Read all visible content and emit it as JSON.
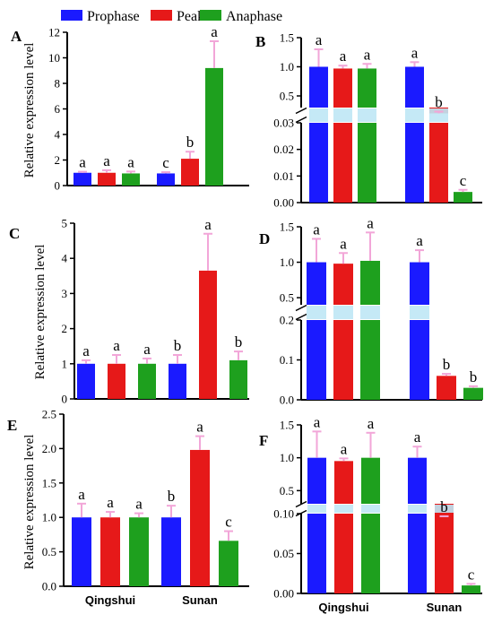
{
  "legend": [
    {
      "label": "Prophase",
      "color": "#1a1aff"
    },
    {
      "label": "Peak",
      "color": "#e61919"
    },
    {
      "label": "Anaphase",
      "color": "#1ea01e"
    }
  ],
  "y_axis_label": "Relative expression level",
  "colors": {
    "prophase": "#1a1aff",
    "peak": "#e61919",
    "anaphase": "#1ea01e",
    "error": "#f2a6d8",
    "break": "#bfe7f5"
  },
  "chart_data": [
    {
      "panel": "A",
      "type": "bar",
      "categories": [
        "Qingshui",
        "Sunan"
      ],
      "ylabel": "Relative expression level",
      "ylim": [
        0,
        12
      ],
      "yticks": [
        0,
        2,
        4,
        6,
        8,
        10,
        12
      ],
      "series": [
        {
          "name": "Prophase",
          "values": [
            1.0,
            0.95
          ],
          "errors": [
            0.08,
            0.1
          ],
          "letters": [
            "a",
            "c"
          ]
        },
        {
          "name": "Peak",
          "values": [
            1.0,
            2.1
          ],
          "errors": [
            0.2,
            0.55
          ],
          "letters": [
            "a",
            "b"
          ]
        },
        {
          "name": "Anaphase",
          "values": [
            0.95,
            9.2
          ],
          "errors": [
            0.15,
            2.1
          ],
          "letters": [
            "a",
            "a"
          ]
        }
      ]
    },
    {
      "panel": "B",
      "type": "bar",
      "categories": [
        "Qingshui",
        "Sunan"
      ],
      "broken_axis": true,
      "upper": {
        "ylim": [
          0.3,
          1.5
        ],
        "yticks": [
          0.5,
          1.0,
          1.5
        ],
        "yticklabels": [
          "0.5",
          "1.0",
          "1.5"
        ]
      },
      "lower": {
        "ylim": [
          0,
          0.03
        ],
        "yticks": [
          0,
          0.01,
          0.02,
          0.03
        ],
        "yticklabels": [
          "0.00",
          "0.01",
          "0.02",
          "0.03"
        ]
      },
      "series": [
        {
          "name": "Prophase",
          "values": [
            1.0,
            1.0
          ],
          "errors": [
            0.3,
            0.08
          ],
          "letters": [
            "a",
            "a"
          ]
        },
        {
          "name": "Peak",
          "values": [
            0.97,
            0.2
          ],
          "errors": [
            0.05,
            0.03
          ],
          "letters": [
            "a",
            "b"
          ]
        },
        {
          "name": "Anaphase",
          "values": [
            0.97,
            0.004
          ],
          "errors": [
            0.08,
            0.0008
          ],
          "letters": [
            "a",
            "c"
          ]
        }
      ]
    },
    {
      "panel": "C",
      "type": "bar",
      "categories": [
        "Qingshui",
        "Sunan"
      ],
      "ylabel": "Relative expression level",
      "ylim": [
        0,
        5
      ],
      "yticks": [
        0,
        1,
        2,
        3,
        4,
        5
      ],
      "series": [
        {
          "name": "Prophase",
          "values": [
            1.0,
            1.0
          ],
          "errors": [
            0.1,
            0.25
          ],
          "letters": [
            "a",
            "b"
          ]
        },
        {
          "name": "Peak",
          "values": [
            1.0,
            3.65
          ],
          "errors": [
            0.25,
            1.05
          ],
          "letters": [
            "a",
            "a"
          ]
        },
        {
          "name": "Anaphase",
          "values": [
            1.0,
            1.1
          ],
          "errors": [
            0.15,
            0.25
          ],
          "letters": [
            "a",
            "b"
          ]
        }
      ]
    },
    {
      "panel": "D",
      "type": "bar",
      "categories": [
        "Qingshui",
        "Sunan"
      ],
      "broken_axis": true,
      "upper": {
        "ylim": [
          0.4,
          1.5
        ],
        "yticks": [
          0.5,
          1.0,
          1.5
        ],
        "yticklabels": [
          "0.5",
          "1.0",
          "1.5"
        ]
      },
      "lower": {
        "ylim": [
          0,
          0.2
        ],
        "yticks": [
          0,
          0.1,
          0.2
        ],
        "yticklabels": [
          "0.0",
          "0.1",
          "0.2"
        ]
      },
      "series": [
        {
          "name": "Prophase",
          "values": [
            1.0,
            1.0
          ],
          "errors": [
            0.33,
            0.17
          ],
          "letters": [
            "a",
            "a"
          ]
        },
        {
          "name": "Peak",
          "values": [
            0.98,
            0.06
          ],
          "errors": [
            0.15,
            0.005
          ],
          "letters": [
            "a",
            "b"
          ]
        },
        {
          "name": "Anaphase",
          "values": [
            1.02,
            0.03
          ],
          "errors": [
            0.4,
            0.004
          ],
          "letters": [
            "a",
            "b"
          ]
        }
      ]
    },
    {
      "panel": "E",
      "type": "bar",
      "categories": [
        "Qingshui",
        "Sunan"
      ],
      "ylabel": "Relative expression level",
      "ylim": [
        0,
        2.5
      ],
      "yticks": [
        0,
        0.5,
        1.0,
        1.5,
        2.0,
        2.5
      ],
      "yticklabels": [
        "0.0",
        "0.5",
        "1.0",
        "1.5",
        "2.0",
        "2.5"
      ],
      "series": [
        {
          "name": "Prophase",
          "values": [
            1.0,
            1.0
          ],
          "errors": [
            0.2,
            0.17
          ],
          "letters": [
            "a",
            "b"
          ]
        },
        {
          "name": "Peak",
          "values": [
            1.0,
            1.98
          ],
          "errors": [
            0.08,
            0.2
          ],
          "letters": [
            "a",
            "a"
          ]
        },
        {
          "name": "Anaphase",
          "values": [
            1.0,
            0.66
          ],
          "errors": [
            0.06,
            0.14
          ],
          "letters": [
            "a",
            "c"
          ]
        }
      ]
    },
    {
      "panel": "F",
      "type": "bar",
      "categories": [
        "Qingshui",
        "Sunan"
      ],
      "broken_axis": true,
      "upper": {
        "ylim": [
          0.3,
          1.5
        ],
        "yticks": [
          0.5,
          1.0,
          1.5
        ],
        "yticklabels": [
          "0.5",
          "1.0",
          "1.5"
        ]
      },
      "lower": {
        "ylim": [
          0,
          0.1
        ],
        "yticks": [
          0,
          0.05,
          0.1
        ],
        "yticklabels": [
          "0.00",
          "0.05",
          "0.10"
        ]
      },
      "series": [
        {
          "name": "Prophase",
          "values": [
            1.0,
            1.0
          ],
          "errors": [
            0.4,
            0.17
          ],
          "letters": [
            "a",
            "a"
          ]
        },
        {
          "name": "Peak",
          "values": [
            0.95,
            0.105
          ],
          "errors": [
            0.04,
            0.005
          ],
          "letters": [
            "a",
            "b"
          ]
        },
        {
          "name": "Anaphase",
          "values": [
            1.0,
            0.01
          ],
          "errors": [
            0.38,
            0.002
          ],
          "letters": [
            "a",
            "c"
          ]
        }
      ]
    }
  ]
}
